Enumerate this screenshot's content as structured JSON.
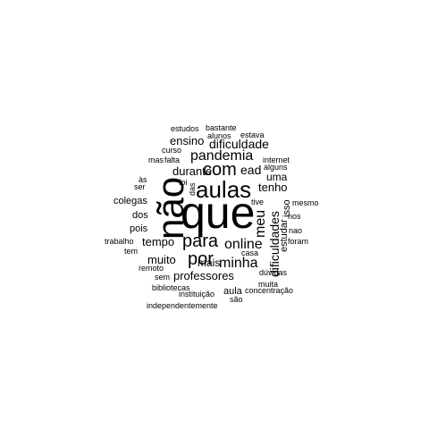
{
  "text_color": "#000000",
  "background": "#ffffff",
  "words": [
    {
      "text": "que",
      "weight": 10
    },
    {
      "text": "não",
      "weight": 9,
      "vertical": true
    },
    {
      "text": "aulas",
      "weight": 6
    },
    {
      "text": "com",
      "weight": 4
    },
    {
      "text": "para",
      "weight": 4
    },
    {
      "text": "por",
      "weight": 4
    },
    {
      "text": "pandemia",
      "weight": 3
    },
    {
      "text": "online",
      "weight": 3
    },
    {
      "text": "minha",
      "weight": 3
    },
    {
      "text": "meu",
      "weight": 3,
      "vertical": true
    },
    {
      "text": "dificuldade",
      "weight": 2
    },
    {
      "text": "ensino",
      "weight": 2
    },
    {
      "text": "durante",
      "weight": 2
    },
    {
      "text": "ead",
      "weight": 2
    },
    {
      "text": "tenho",
      "weight": 2
    },
    {
      "text": "uma",
      "weight": 2
    },
    {
      "text": "tempo",
      "weight": 2
    },
    {
      "text": "muito",
      "weight": 2
    },
    {
      "text": "professores",
      "weight": 2
    },
    {
      "text": "mais",
      "weight": 2
    },
    {
      "text": "dificuldades",
      "weight": 2,
      "vertical": true
    },
    {
      "text": "estudar",
      "weight": 1,
      "vertical": true
    },
    {
      "text": "isso",
      "weight": 1,
      "vertical": true
    },
    {
      "text": "aula",
      "weight": 1
    },
    {
      "text": "estudos",
      "weight": 0
    },
    {
      "text": "bastante",
      "weight": 0
    },
    {
      "text": "alunos",
      "weight": 0
    },
    {
      "text": "estava",
      "weight": 0
    },
    {
      "text": "curso",
      "weight": 0
    },
    {
      "text": "mas",
      "weight": 0
    },
    {
      "text": "falta",
      "weight": 0
    },
    {
      "text": "internet",
      "weight": 0
    },
    {
      "text": "alguns",
      "weight": 0
    },
    {
      "text": "às",
      "weight": 0
    },
    {
      "text": "ser",
      "weight": 0
    },
    {
      "text": "foi",
      "weight": 0
    },
    {
      "text": "das",
      "weight": 0,
      "vertical": true
    },
    {
      "text": "colegas",
      "weight": 0
    },
    {
      "text": "tive",
      "weight": 0
    },
    {
      "text": "mesmo",
      "weight": 0
    },
    {
      "text": "dos",
      "weight": 0
    },
    {
      "text": "nos",
      "weight": 0
    },
    {
      "text": "pois",
      "weight": 0
    },
    {
      "text": "nao",
      "weight": 0
    },
    {
      "text": "trabalho",
      "weight": 0
    },
    {
      "text": "foram",
      "weight": 0
    },
    {
      "text": "tem",
      "weight": 0
    },
    {
      "text": "casa",
      "weight": 0
    },
    {
      "text": "remoto",
      "weight": 0
    },
    {
      "text": "dúvidas",
      "weight": 0
    },
    {
      "text": "sem",
      "weight": 0
    },
    {
      "text": "muita",
      "weight": 0
    },
    {
      "text": "bibliotecas",
      "weight": 0
    },
    {
      "text": "concentração",
      "weight": 0
    },
    {
      "text": "instituição",
      "weight": 0
    },
    {
      "text": "são",
      "weight": 0
    },
    {
      "text": "independentemente",
      "weight": 0
    }
  ]
}
